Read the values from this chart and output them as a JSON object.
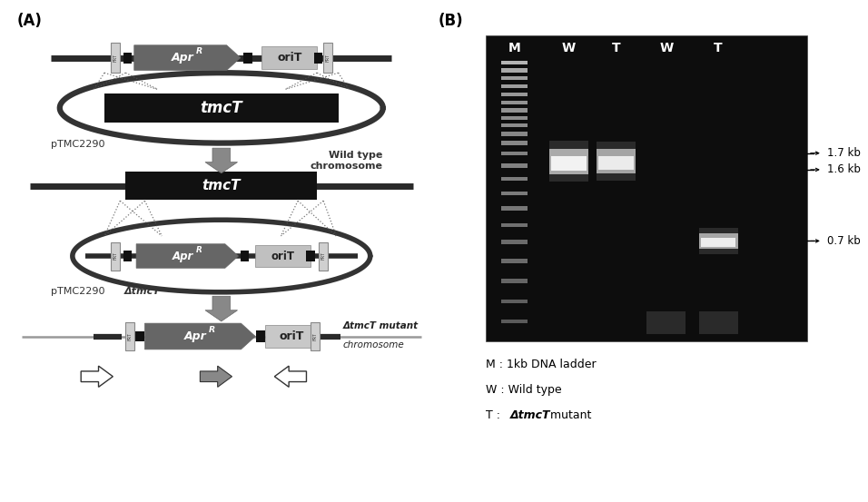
{
  "fig_width": 9.56,
  "fig_height": 5.53,
  "bg_color": "#ffffff",
  "panel_A_label": "(A)",
  "panel_B_label": "(B)",
  "size_labels": [
    "1.7 kb",
    "1.6 kb",
    "0.7 kb"
  ],
  "legend_lines": [
    "M : 1kb DNA ladder",
    "W : Wild type",
    "T : ΔtmcT mutant"
  ],
  "col_labels": [
    "M",
    "W",
    "T",
    "W",
    "T"
  ]
}
